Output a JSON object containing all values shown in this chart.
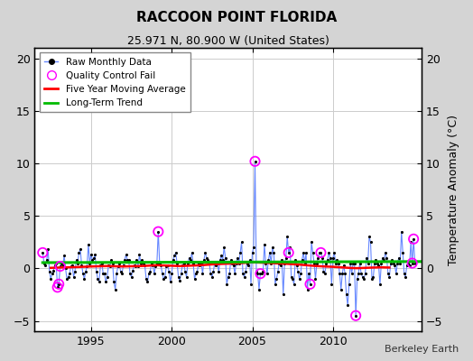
{
  "title": "RACCOON POINT FLORIDA",
  "subtitle": "25.971 N, 80.900 W (United States)",
  "ylabel": "Temperature Anomaly (°C)",
  "credit": "Berkeley Earth",
  "ylim": [
    -6,
    21
  ],
  "yticks": [
    -5,
    0,
    5,
    10,
    15,
    20
  ],
  "xlim": [
    1991.5,
    2015.5
  ],
  "xticks": [
    1995,
    2000,
    2005,
    2010
  ],
  "bg_color": "#d4d4d4",
  "plot_bg_color": "#ffffff",
  "raw_color": "#6688ff",
  "raw_dot_color": "#000000",
  "ma_color": "#ff0000",
  "trend_color": "#00bb00",
  "qc_color": "magenta",
  "raw_data": [
    [
      1992.0,
      1.5
    ],
    [
      1992.083,
      0.5
    ],
    [
      1992.167,
      0.3
    ],
    [
      1992.25,
      0.8
    ],
    [
      1992.333,
      1.8
    ],
    [
      1992.417,
      -0.3
    ],
    [
      1992.5,
      -1.0
    ],
    [
      1992.583,
      -0.5
    ],
    [
      1992.667,
      -0.2
    ],
    [
      1992.75,
      0.3
    ],
    [
      1992.833,
      0.5
    ],
    [
      1992.917,
      -1.8
    ],
    [
      1993.0,
      -1.5
    ],
    [
      1993.083,
      0.2
    ],
    [
      1993.167,
      0.5
    ],
    [
      1993.25,
      0.3
    ],
    [
      1993.333,
      1.2
    ],
    [
      1993.417,
      0.0
    ],
    [
      1993.5,
      -1.0
    ],
    [
      1993.583,
      -0.8
    ],
    [
      1993.667,
      -0.5
    ],
    [
      1993.75,
      0.2
    ],
    [
      1993.833,
      0.3
    ],
    [
      1993.917,
      -0.8
    ],
    [
      1994.0,
      -0.3
    ],
    [
      1994.083,
      0.8
    ],
    [
      1994.167,
      0.5
    ],
    [
      1994.25,
      1.5
    ],
    [
      1994.333,
      1.8
    ],
    [
      1994.417,
      0.3
    ],
    [
      1994.5,
      -0.5
    ],
    [
      1994.583,
      -1.0
    ],
    [
      1994.667,
      -0.3
    ],
    [
      1994.75,
      0.2
    ],
    [
      1994.833,
      2.3
    ],
    [
      1994.917,
      0.5
    ],
    [
      1995.0,
      1.3
    ],
    [
      1995.083,
      0.8
    ],
    [
      1995.167,
      1.0
    ],
    [
      1995.25,
      1.3
    ],
    [
      1995.333,
      -0.3
    ],
    [
      1995.417,
      -1.0
    ],
    [
      1995.5,
      -1.3
    ],
    [
      1995.583,
      0.3
    ],
    [
      1995.667,
      0.5
    ],
    [
      1995.75,
      -0.5
    ],
    [
      1995.833,
      -0.5
    ],
    [
      1995.917,
      -1.3
    ],
    [
      1996.0,
      -0.8
    ],
    [
      1996.083,
      0.3
    ],
    [
      1996.167,
      0.2
    ],
    [
      1996.25,
      0.8
    ],
    [
      1996.333,
      0.5
    ],
    [
      1996.417,
      -1.3
    ],
    [
      1996.5,
      -2.0
    ],
    [
      1996.583,
      -0.5
    ],
    [
      1996.667,
      0.2
    ],
    [
      1996.75,
      0.5
    ],
    [
      1996.833,
      -0.3
    ],
    [
      1996.917,
      -0.5
    ],
    [
      1997.0,
      0.3
    ],
    [
      1997.083,
      0.8
    ],
    [
      1997.167,
      1.3
    ],
    [
      1997.25,
      0.8
    ],
    [
      1997.333,
      0.8
    ],
    [
      1997.417,
      -0.5
    ],
    [
      1997.5,
      -0.8
    ],
    [
      1997.583,
      -0.2
    ],
    [
      1997.667,
      0.3
    ],
    [
      1997.75,
      0.2
    ],
    [
      1997.833,
      0.8
    ],
    [
      1997.917,
      0.2
    ],
    [
      1998.0,
      1.3
    ],
    [
      1998.083,
      0.5
    ],
    [
      1998.167,
      0.8
    ],
    [
      1998.25,
      0.5
    ],
    [
      1998.333,
      0.3
    ],
    [
      1998.417,
      -1.0
    ],
    [
      1998.5,
      -1.3
    ],
    [
      1998.583,
      -0.5
    ],
    [
      1998.667,
      -0.3
    ],
    [
      1998.75,
      0.5
    ],
    [
      1998.833,
      0.3
    ],
    [
      1998.917,
      -0.5
    ],
    [
      1999.0,
      0.2
    ],
    [
      1999.083,
      0.5
    ],
    [
      1999.167,
      3.5
    ],
    [
      1999.25,
      0.5
    ],
    [
      1999.333,
      0.3
    ],
    [
      1999.417,
      -0.5
    ],
    [
      1999.5,
      -1.0
    ],
    [
      1999.583,
      -0.8
    ],
    [
      1999.667,
      0.2
    ],
    [
      1999.75,
      0.3
    ],
    [
      1999.833,
      -0.3
    ],
    [
      1999.917,
      -1.3
    ],
    [
      2000.0,
      -0.5
    ],
    [
      2000.083,
      0.8
    ],
    [
      2000.167,
      1.2
    ],
    [
      2000.25,
      1.5
    ],
    [
      2000.333,
      0.5
    ],
    [
      2000.417,
      -0.8
    ],
    [
      2000.5,
      -1.2
    ],
    [
      2000.583,
      -0.5
    ],
    [
      2000.667,
      0.3
    ],
    [
      2000.75,
      0.5
    ],
    [
      2000.833,
      -0.3
    ],
    [
      2000.917,
      -0.8
    ],
    [
      2001.0,
      0.5
    ],
    [
      2001.083,
      1.0
    ],
    [
      2001.167,
      0.8
    ],
    [
      2001.25,
      1.5
    ],
    [
      2001.333,
      0.5
    ],
    [
      2001.417,
      -1.0
    ],
    [
      2001.5,
      -0.5
    ],
    [
      2001.583,
      -0.3
    ],
    [
      2001.667,
      0.5
    ],
    [
      2001.75,
      0.3
    ],
    [
      2001.833,
      0.5
    ],
    [
      2001.917,
      -0.5
    ],
    [
      2002.0,
      0.8
    ],
    [
      2002.083,
      1.5
    ],
    [
      2002.167,
      1.0
    ],
    [
      2002.25,
      0.8
    ],
    [
      2002.333,
      0.5
    ],
    [
      2002.417,
      -0.5
    ],
    [
      2002.5,
      -0.8
    ],
    [
      2002.583,
      -0.3
    ],
    [
      2002.667,
      0.5
    ],
    [
      2002.75,
      0.3
    ],
    [
      2002.833,
      0.5
    ],
    [
      2002.917,
      -0.3
    ],
    [
      2003.0,
      0.8
    ],
    [
      2003.083,
      1.2
    ],
    [
      2003.167,
      0.8
    ],
    [
      2003.25,
      2.0
    ],
    [
      2003.333,
      1.0
    ],
    [
      2003.417,
      -1.5
    ],
    [
      2003.5,
      -0.8
    ],
    [
      2003.583,
      -0.5
    ],
    [
      2003.667,
      0.8
    ],
    [
      2003.75,
      0.5
    ],
    [
      2003.833,
      0.3
    ],
    [
      2003.917,
      -0.5
    ],
    [
      2004.0,
      0.5
    ],
    [
      2004.083,
      1.0
    ],
    [
      2004.167,
      0.5
    ],
    [
      2004.25,
      1.5
    ],
    [
      2004.333,
      2.5
    ],
    [
      2004.417,
      -0.5
    ],
    [
      2004.5,
      -0.8
    ],
    [
      2004.583,
      -0.3
    ],
    [
      2004.667,
      0.5
    ],
    [
      2004.75,
      0.3
    ],
    [
      2004.833,
      0.8
    ],
    [
      2004.917,
      -1.5
    ],
    [
      2005.0,
      1.5
    ],
    [
      2005.083,
      2.0
    ],
    [
      2005.167,
      10.2
    ],
    [
      2005.25,
      -0.3
    ],
    [
      2005.333,
      -0.5
    ],
    [
      2005.417,
      -2.0
    ],
    [
      2005.5,
      -0.5
    ],
    [
      2005.583,
      -0.5
    ],
    [
      2005.667,
      -0.3
    ],
    [
      2005.75,
      2.3
    ],
    [
      2005.833,
      0.5
    ],
    [
      2005.917,
      -0.5
    ],
    [
      2006.0,
      0.8
    ],
    [
      2006.083,
      1.5
    ],
    [
      2006.167,
      0.5
    ],
    [
      2006.25,
      2.0
    ],
    [
      2006.333,
      1.5
    ],
    [
      2006.417,
      -1.5
    ],
    [
      2006.5,
      -1.0
    ],
    [
      2006.583,
      -0.3
    ],
    [
      2006.667,
      0.5
    ],
    [
      2006.75,
      0.3
    ],
    [
      2006.833,
      0.8
    ],
    [
      2006.917,
      -2.5
    ],
    [
      2007.0,
      0.5
    ],
    [
      2007.083,
      1.0
    ],
    [
      2007.167,
      3.0
    ],
    [
      2007.25,
      1.5
    ],
    [
      2007.333,
      2.0
    ],
    [
      2007.417,
      -0.8
    ],
    [
      2007.5,
      -1.0
    ],
    [
      2007.583,
      -1.5
    ],
    [
      2007.667,
      0.8
    ],
    [
      2007.75,
      0.3
    ],
    [
      2007.833,
      -0.3
    ],
    [
      2007.917,
      -1.0
    ],
    [
      2008.0,
      -0.5
    ],
    [
      2008.083,
      0.8
    ],
    [
      2008.167,
      1.5
    ],
    [
      2008.25,
      0.5
    ],
    [
      2008.333,
      1.5
    ],
    [
      2008.417,
      -2.0
    ],
    [
      2008.5,
      -0.5
    ],
    [
      2008.583,
      -1.5
    ],
    [
      2008.667,
      2.5
    ],
    [
      2008.75,
      1.5
    ],
    [
      2008.833,
      0.5
    ],
    [
      2008.917,
      -1.0
    ],
    [
      2009.0,
      0.5
    ],
    [
      2009.083,
      1.0
    ],
    [
      2009.167,
      1.5
    ],
    [
      2009.25,
      1.5
    ],
    [
      2009.333,
      1.0
    ],
    [
      2009.417,
      -0.3
    ],
    [
      2009.5,
      -0.5
    ],
    [
      2009.583,
      0.5
    ],
    [
      2009.667,
      0.8
    ],
    [
      2009.75,
      1.5
    ],
    [
      2009.833,
      1.0
    ],
    [
      2009.917,
      -1.5
    ],
    [
      2010.0,
      1.0
    ],
    [
      2010.083,
      1.5
    ],
    [
      2010.167,
      0.5
    ],
    [
      2010.25,
      0.8
    ],
    [
      2010.333,
      0.5
    ],
    [
      2010.417,
      -0.5
    ],
    [
      2010.5,
      -2.0
    ],
    [
      2010.583,
      -0.5
    ],
    [
      2010.667,
      0.3
    ],
    [
      2010.75,
      -0.5
    ],
    [
      2010.833,
      -2.5
    ],
    [
      2010.917,
      -3.5
    ],
    [
      2011.0,
      -1.5
    ],
    [
      2011.083,
      0.5
    ],
    [
      2011.167,
      -0.5
    ],
    [
      2011.25,
      0.5
    ],
    [
      2011.333,
      0.5
    ],
    [
      2011.417,
      -4.5
    ],
    [
      2011.5,
      -1.0
    ],
    [
      2011.583,
      -0.5
    ],
    [
      2011.667,
      0.5
    ],
    [
      2011.75,
      -0.5
    ],
    [
      2011.833,
      -0.8
    ],
    [
      2011.917,
      -1.0
    ],
    [
      2012.0,
      -0.5
    ],
    [
      2012.083,
      1.0
    ],
    [
      2012.167,
      0.5
    ],
    [
      2012.25,
      3.0
    ],
    [
      2012.333,
      2.5
    ],
    [
      2012.417,
      -1.0
    ],
    [
      2012.5,
      -0.8
    ],
    [
      2012.583,
      0.5
    ],
    [
      2012.667,
      0.8
    ],
    [
      2012.75,
      0.5
    ],
    [
      2012.833,
      0.3
    ],
    [
      2012.917,
      -1.5
    ],
    [
      2013.0,
      0.5
    ],
    [
      2013.083,
      1.0
    ],
    [
      2013.167,
      0.8
    ],
    [
      2013.25,
      1.5
    ],
    [
      2013.333,
      1.0
    ],
    [
      2013.417,
      -0.5
    ],
    [
      2013.5,
      -0.8
    ],
    [
      2013.583,
      0.5
    ],
    [
      2013.667,
      0.8
    ],
    [
      2013.75,
      0.5
    ],
    [
      2013.833,
      0.3
    ],
    [
      2013.917,
      -0.5
    ],
    [
      2014.0,
      0.5
    ],
    [
      2014.083,
      1.0
    ],
    [
      2014.167,
      0.5
    ],
    [
      2014.25,
      3.5
    ],
    [
      2014.333,
      1.5
    ],
    [
      2014.417,
      -0.5
    ],
    [
      2014.5,
      -0.8
    ],
    [
      2014.583,
      0.3
    ],
    [
      2014.667,
      0.5
    ],
    [
      2014.75,
      0.3
    ],
    [
      2014.833,
      2.5
    ],
    [
      2014.917,
      0.5
    ],
    [
      2015.0,
      2.8
    ],
    [
      2015.083,
      0.5
    ]
  ],
  "qc_fails": [
    [
      1992.0,
      1.5
    ],
    [
      1992.917,
      -1.8
    ],
    [
      1993.0,
      -1.5
    ],
    [
      1993.083,
      0.2
    ],
    [
      1999.167,
      3.5
    ],
    [
      2005.167,
      10.2
    ],
    [
      2005.5,
      -0.5
    ],
    [
      2007.25,
      1.5
    ],
    [
      2008.583,
      -1.5
    ],
    [
      2009.25,
      1.5
    ],
    [
      2011.417,
      -4.5
    ],
    [
      2014.917,
      0.5
    ],
    [
      2015.0,
      2.8
    ]
  ],
  "moving_avg_x": [
    1992.5,
    1993.0,
    1993.5,
    1994.0,
    1994.5,
    1995.0,
    1995.5,
    1996.0,
    1996.5,
    1997.0,
    1997.5,
    1998.0,
    1998.5,
    1999.0,
    1999.5,
    2000.0,
    2000.5,
    2001.0,
    2001.5,
    2002.0,
    2002.5,
    2003.0,
    2003.5,
    2004.0,
    2004.5,
    2005.0,
    2005.5,
    2006.0,
    2006.5,
    2007.0,
    2007.5,
    2008.0,
    2008.5,
    2009.0,
    2009.5,
    2010.0,
    2010.5,
    2011.0,
    2011.5,
    2012.0,
    2012.5,
    2013.0,
    2013.5
  ],
  "moving_avg_y": [
    0.05,
    0.08,
    0.1,
    0.12,
    0.15,
    0.18,
    0.2,
    0.22,
    0.2,
    0.18,
    0.2,
    0.22,
    0.25,
    0.3,
    0.28,
    0.25,
    0.22,
    0.25,
    0.28,
    0.32,
    0.38,
    0.42,
    0.45,
    0.48,
    0.52,
    0.58,
    0.55,
    0.52,
    0.48,
    0.45,
    0.4,
    0.35,
    0.28,
    0.22,
    0.18,
    0.15,
    0.1,
    0.05,
    0.02,
    0.05,
    0.08,
    0.1,
    0.08
  ],
  "trend_x": [
    1992.0,
    2015.5
  ],
  "trend_y": [
    0.55,
    0.65
  ]
}
